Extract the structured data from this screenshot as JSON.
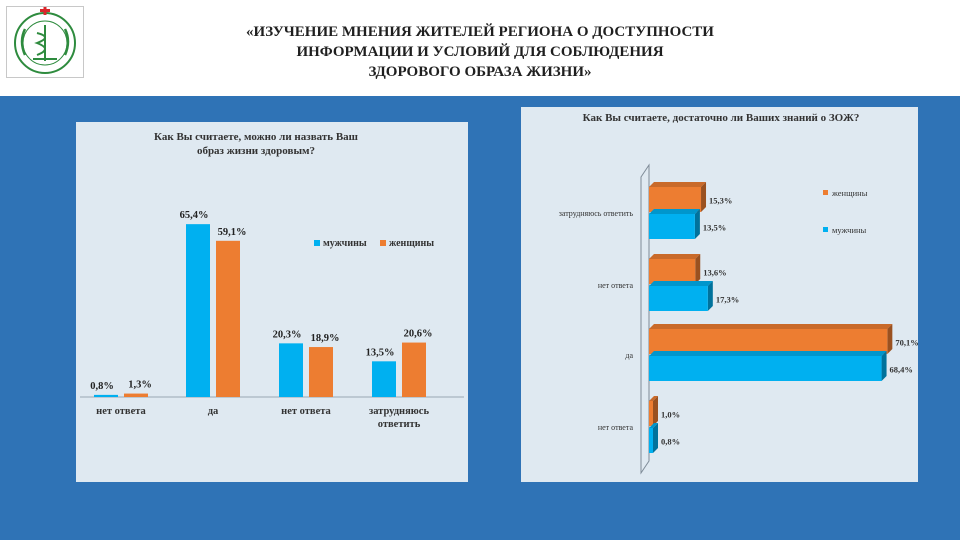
{
  "header": {
    "title": "«ИЗУЧЕНИЕ МНЕНИЯ ЖИТЕЛЕЙ РЕГИОНА О ДОСТУПНОСТИ\nИНФОРМАЦИИ И УСЛОВИЙ ДЛЯ СОБЛЮДЕНИЯ\nЗДОРОВОГО ОБРАЗА ЖИЗНИ»"
  },
  "logo": {
    "icon": "medical-emblem-icon",
    "ring_text": ""
  },
  "colors": {
    "men": "#00b0f0",
    "women": "#ed7d31",
    "background": "#2f73b6",
    "panel": "#dfe9f1"
  },
  "chart_data": [
    {
      "type": "bar",
      "title": "Как Вы считаете, можно ли назвать Ваш образ жизни здоровым?",
      "categories": [
        "нет ответа",
        "да",
        "нет ответа",
        "затрудняюсь ответить"
      ],
      "series": [
        {
          "name": "мужчины",
          "values": [
            0.8,
            65.4,
            20.3,
            13.5
          ],
          "labels": [
            "0,8%",
            "65,4%",
            "20,3%",
            "13,5%"
          ]
        },
        {
          "name": "женщины",
          "values": [
            1.3,
            59.1,
            18.9,
            20.6
          ],
          "labels": [
            "1,3%",
            "59,1%",
            "18,9%",
            "20,6%"
          ]
        }
      ],
      "ylim": [
        0,
        70
      ],
      "legend": "right",
      "grid": false
    },
    {
      "type": "bar",
      "orientation": "horizontal",
      "title": "Как Вы считаете, достаточно ли Ваших знаний о ЗОЖ?",
      "categories": [
        "затрудняюсь ответить",
        "нет ответа",
        "да",
        "нет ответа"
      ],
      "series": [
        {
          "name": "женщины",
          "values": [
            15.3,
            13.6,
            70.1,
            1.0
          ],
          "labels": [
            "15,3%",
            "13,6%",
            "70,1%",
            "1,0%"
          ]
        },
        {
          "name": "мужчины",
          "values": [
            13.5,
            17.3,
            68.4,
            0.8
          ],
          "labels": [
            "13,5%",
            "17,3%",
            "68,4%",
            "0,8%"
          ]
        }
      ],
      "xlim": [
        0,
        75
      ],
      "legend": "top-right",
      "grid": false
    }
  ]
}
